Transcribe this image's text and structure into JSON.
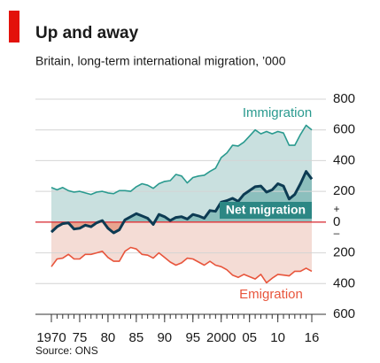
{
  "chart_data": {
    "type": "line",
    "title": "Up and away",
    "subtitle": "Britain, long-term international migration, ’000",
    "source": "Source: ONS",
    "annotations": [
      "+",
      "–"
    ],
    "x": [
      1970,
      1971,
      1972,
      1973,
      1974,
      1975,
      1976,
      1977,
      1978,
      1979,
      1980,
      1981,
      1982,
      1983,
      1984,
      1985,
      1986,
      1987,
      1988,
      1989,
      1990,
      1991,
      1992,
      1993,
      1994,
      1995,
      1996,
      1997,
      1998,
      1999,
      2000,
      2001,
      2002,
      2003,
      2004,
      2005,
      2006,
      2007,
      2008,
      2009,
      2010,
      2011,
      2012,
      2013,
      2014,
      2015,
      2016
    ],
    "xlim": [
      1970,
      2016
    ],
    "xticks": [
      1970,
      {
        "value": 1975,
        "label": "75"
      },
      {
        "value": 1980,
        "label": "80"
      },
      {
        "value": 1985,
        "label": "85"
      },
      {
        "value": 1990,
        "label": "90"
      },
      {
        "value": 1995,
        "label": "95"
      },
      2000,
      {
        "value": 2005,
        "label": "05"
      },
      {
        "value": 2010,
        "label": "10"
      },
      {
        "value": 2016,
        "label": "16"
      }
    ],
    "ylim": [
      -600,
      800
    ],
    "yticks": [
      {
        "value": -600,
        "label": "600"
      },
      {
        "value": -400,
        "label": "400"
      },
      {
        "value": -200,
        "label": "200"
      },
      0,
      200,
      400,
      600,
      800
    ],
    "grid": true,
    "series": [
      {
        "name": "Immigration",
        "color": "#2a9a8f",
        "fill": "#c9e0df",
        "values": [
          225,
          210,
          225,
          205,
          195,
          200,
          190,
          180,
          195,
          200,
          190,
          185,
          205,
          205,
          200,
          230,
          250,
          240,
          220,
          250,
          265,
          270,
          310,
          300,
          255,
          290,
          300,
          305,
          330,
          350,
          420,
          450,
          500,
          495,
          520,
          560,
          600,
          575,
          590,
          575,
          590,
          580,
          500,
          500,
          570,
          630,
          600
        ]
      },
      {
        "name": "Emigration",
        "color": "#e8553c",
        "fill": "#f4dcd5",
        "values": [
          -290,
          -240,
          -235,
          -210,
          -240,
          -240,
          -210,
          -210,
          -200,
          -190,
          -230,
          -255,
          -255,
          -190,
          -165,
          -175,
          -210,
          -215,
          -235,
          -200,
          -230,
          -260,
          -280,
          -265,
          -235,
          -240,
          -260,
          -280,
          -255,
          -280,
          -290,
          -310,
          -345,
          -360,
          -340,
          -355,
          -370,
          -340,
          -395,
          -365,
          -340,
          -345,
          -350,
          -320,
          -320,
          -300,
          -320
        ]
      },
      {
        "name": "Net migration",
        "color": "#0d3b53",
        "fill": "#8cbfbd",
        "negative_fill": "#e8a48f",
        "values": [
          -65,
          -30,
          -10,
          -5,
          -45,
          -40,
          -20,
          -30,
          -5,
          10,
          -40,
          -70,
          -50,
          15,
          35,
          55,
          40,
          25,
          -15,
          50,
          35,
          10,
          30,
          35,
          20,
          50,
          40,
          25,
          75,
          70,
          130,
          140,
          155,
          135,
          180,
          205,
          230,
          235,
          195,
          210,
          250,
          235,
          150,
          180,
          250,
          330,
          280
        ]
      }
    ],
    "zero_line_color": "#d9262e"
  }
}
